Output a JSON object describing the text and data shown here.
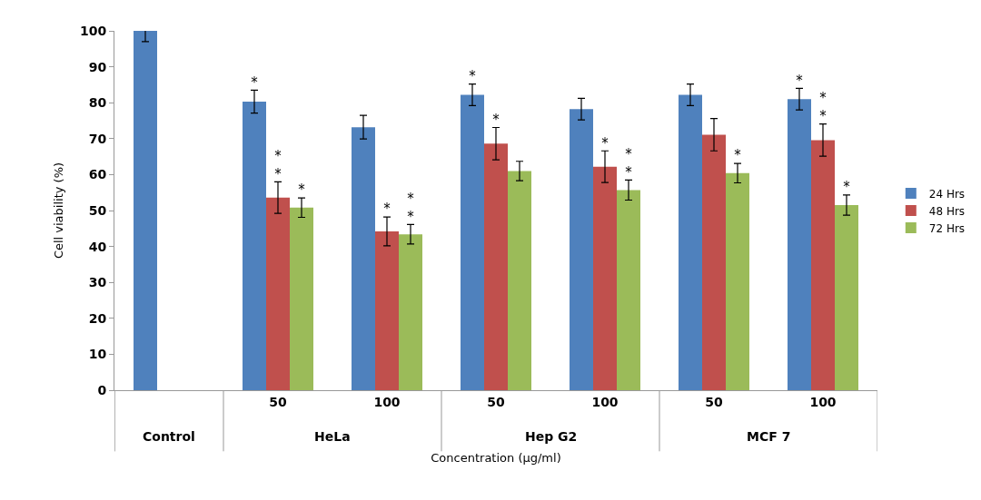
{
  "chart_data": {
    "type": "bar",
    "xlabel": "Concentration (µg/ml)",
    "ylabel": "Cell viability (%)",
    "categories": [
      null,
      "50",
      "100",
      "50",
      "100",
      "50",
      "100"
    ],
    "series": [
      {
        "name": "24 Hrs",
        "color": "#4f81bd",
        "values": [
          100,
          80.3,
          73.2,
          82.2,
          78.2,
          82.2,
          81
        ],
        "errors": [
          3,
          3.2,
          3.3,
          3,
          3,
          3,
          3
        ],
        "value_labels": [
          null,
          "*",
          null,
          "*",
          null,
          null,
          "*"
        ]
      },
      {
        "name": "48 Hrs",
        "color": "#c0504d",
        "values": [
          null,
          53.6,
          44.2,
          68.6,
          62.2,
          71.1,
          69.6
        ],
        "errors": [
          null,
          4.4,
          4,
          4.5,
          4.4,
          4.5,
          4.5
        ],
        "value_labels": [
          null,
          "**",
          "*",
          "*",
          "*",
          null,
          "**"
        ]
      },
      {
        "name": "72 Hrs",
        "color": "#9bbb59",
        "values": [
          null,
          50.8,
          43.4,
          61,
          55.7,
          60.4,
          51.5
        ],
        "errors": [
          null,
          2.7,
          2.7,
          2.7,
          2.8,
          2.7,
          2.8
        ],
        "value_labels": [
          null,
          "*",
          "**",
          null,
          "**",
          "*",
          "*"
        ]
      }
    ],
    "annotations": [
      "Control",
      "HeLa",
      "Hep G2",
      "MCF 7"
    ],
    "ylim": [
      0,
      100
    ],
    "yticks": [
      0,
      10,
      20,
      30,
      40,
      50,
      60,
      70,
      80,
      90,
      100
    ],
    "legend": "right"
  }
}
